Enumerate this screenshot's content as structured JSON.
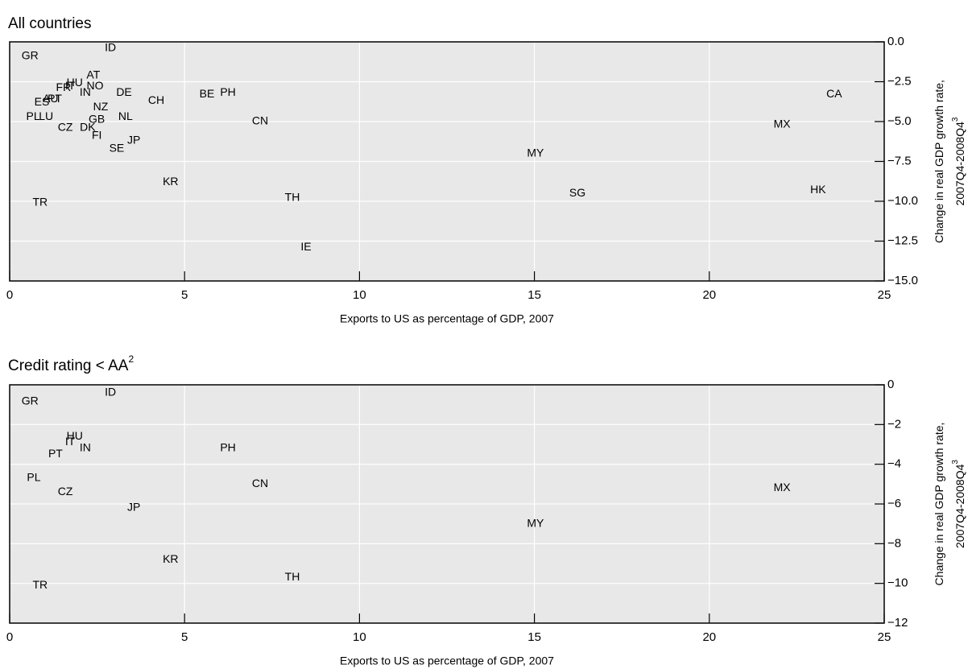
{
  "chart_data": [
    {
      "type": "scatter",
      "title": "All countries",
      "xlabel": "Exports to US as percentage of GDP, 2007",
      "ylabel_lines": [
        "Change in real GDP growth rate,",
        "2007Q4-2008Q4"
      ],
      "ylabel_note": "3",
      "xlim": [
        0,
        25
      ],
      "xticks": [
        0,
        5,
        10,
        15,
        20,
        25
      ],
      "ylim": [
        -15,
        0
      ],
      "yticks": [
        {
          "value": 0,
          "label": "0.0"
        },
        {
          "value": -2.5,
          "label": "−2.5"
        },
        {
          "value": -5,
          "label": "−5.0"
        },
        {
          "value": -7.5,
          "label": "−7.5"
        },
        {
          "value": -10,
          "label": "−10.0"
        },
        {
          "value": -12.5,
          "label": "−12.5"
        },
        {
          "value": -15,
          "label": "−15.0"
        }
      ],
      "grid": true,
      "labels": [
        "GR",
        "ID",
        "AT",
        "FR",
        "IT",
        "HU",
        "NO",
        "IN",
        "DE",
        "BE",
        "PH",
        "CH",
        "CA",
        "ES",
        "AU",
        "PT",
        "NZ",
        "PL",
        "LU",
        "NL",
        "GB",
        "CN",
        "MX",
        "CZ",
        "DK",
        "FI",
        "JP",
        "SE",
        "MY",
        "KR",
        "HK",
        "SG",
        "TH",
        "TR",
        "IE"
      ],
      "x": [
        0.58,
        2.88,
        2.39,
        1.54,
        1.73,
        1.86,
        2.44,
        2.16,
        3.27,
        5.64,
        6.24,
        4.19,
        23.57,
        0.92,
        1.17,
        1.29,
        2.6,
        0.67,
        1.04,
        3.31,
        2.49,
        7.16,
        22.08,
        1.59,
        2.23,
        2.49,
        3.55,
        3.06,
        15.03,
        4.6,
        23.11,
        16.23,
        8.08,
        0.87,
        8.47
      ],
      "values": [
        -0.9,
        -0.4,
        -2.1,
        -2.9,
        -2.8,
        -2.6,
        -2.8,
        -3.2,
        -3.2,
        -3.3,
        -3.2,
        -3.7,
        -3.3,
        -3.8,
        -3.6,
        -3.6,
        -4.1,
        -4.7,
        -4.7,
        -4.7,
        -4.9,
        -5.0,
        -5.2,
        -5.4,
        -5.4,
        -5.9,
        -6.2,
        -6.7,
        -7.0,
        -8.8,
        -9.3,
        -9.5,
        -9.8,
        -10.1,
        -12.9
      ]
    },
    {
      "type": "scatter",
      "title": "Credit rating < AA",
      "title_note": "2",
      "xlabel": "Exports to US as percentage of GDP, 2007",
      "ylabel_lines": [
        "Change in real GDP growth rate,",
        "2007Q4-2008Q4"
      ],
      "ylabel_note": "3",
      "xlim": [
        0,
        25
      ],
      "xticks": [
        0,
        5,
        10,
        15,
        20,
        25
      ],
      "ylim": [
        -12,
        0
      ],
      "yticks": [
        0,
        {
          "value": -2,
          "label": "−2"
        },
        {
          "value": -4,
          "label": "−4"
        },
        {
          "value": -6,
          "label": "−6"
        },
        {
          "value": -8,
          "label": "−8"
        },
        {
          "value": -10,
          "label": "−10"
        },
        {
          "value": -12,
          "label": "−12"
        }
      ],
      "grid": true,
      "labels": [
        "GR",
        "ID",
        "HU",
        "IT",
        "IN",
        "PT",
        "PH",
        "PL",
        "CN",
        "MX",
        "CZ",
        "JP",
        "MY",
        "KR",
        "TH",
        "TR"
      ],
      "x": [
        0.58,
        2.88,
        1.86,
        1.73,
        2.16,
        1.31,
        6.24,
        0.69,
        7.16,
        22.08,
        1.59,
        3.55,
        15.03,
        4.6,
        8.08,
        0.87
      ],
      "values": [
        -0.85,
        -0.4,
        -2.6,
        -2.9,
        -3.2,
        -3.5,
        -3.2,
        -4.7,
        -5.0,
        -5.2,
        -5.4,
        -6.2,
        -7.0,
        -8.8,
        -9.7,
        -10.1
      ]
    }
  ]
}
